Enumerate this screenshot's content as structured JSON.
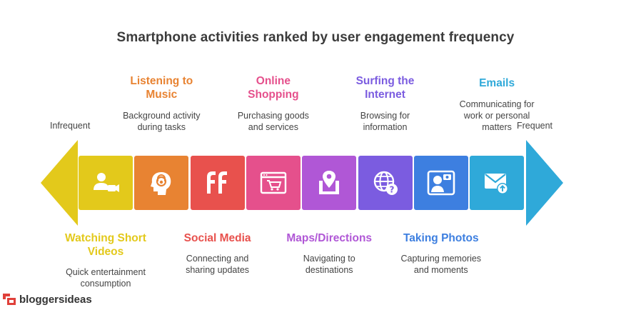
{
  "title": "Smartphone activities ranked by user engagement frequency",
  "scale": {
    "low": "Infrequent",
    "high": "Frequent"
  },
  "activities": [
    {
      "label": "Watching Short Videos",
      "label_lines": [
        "Watching Short",
        "Videos"
      ],
      "desc_lines": [
        "Quick entertainment",
        "consumption"
      ],
      "color": "#e3c91b",
      "icon": "video-user-icon",
      "position": "bottom"
    },
    {
      "label": "Listening to Music",
      "label_lines": [
        "Listening to",
        "Music"
      ],
      "desc_lines": [
        "Background activity",
        "during tasks"
      ],
      "color": "#e88332",
      "icon": "headphones-head-icon",
      "position": "top"
    },
    {
      "label": "Social Media",
      "label_lines": [
        "Social Media"
      ],
      "desc_lines": [
        "Connecting and",
        "sharing updates"
      ],
      "color": "#e8514d",
      "icon": "social-media-icon",
      "position": "bottom"
    },
    {
      "label": "Online Shopping",
      "label_lines": [
        "Online",
        "Shopping"
      ],
      "desc_lines": [
        "Purchasing goods",
        "and services"
      ],
      "color": "#e5508c",
      "icon": "shopping-cart-icon",
      "position": "top"
    },
    {
      "label": "Maps/Directions",
      "label_lines": [
        "Maps/Directions"
      ],
      "desc_lines": [
        "Navigating to",
        "destinations"
      ],
      "color": "#b057d6",
      "icon": "map-pin-icon",
      "position": "bottom"
    },
    {
      "label": "Surfing the Internet",
      "label_lines": [
        "Surfing the",
        "Internet"
      ],
      "desc_lines": [
        "Browsing for",
        "information"
      ],
      "color": "#7b5ce0",
      "icon": "globe-question-icon",
      "position": "top"
    },
    {
      "label": "Taking Photos",
      "label_lines": [
        "Taking Photos"
      ],
      "desc_lines": [
        "Capturing memories",
        "and moments"
      ],
      "color": "#3d7fe0",
      "icon": "photo-user-icon",
      "position": "bottom"
    },
    {
      "label": "Emails",
      "label_lines": [
        "Emails"
      ],
      "desc_lines": [
        "Communicating for",
        "work or personal",
        "matters"
      ],
      "color": "#2fa9d9",
      "icon": "email-icon",
      "position": "top"
    }
  ],
  "colors": {
    "left_arrow": "#e3c91b",
    "right_arrow": "#2fa9d9"
  },
  "logo": {
    "text": "bloggersideas"
  }
}
